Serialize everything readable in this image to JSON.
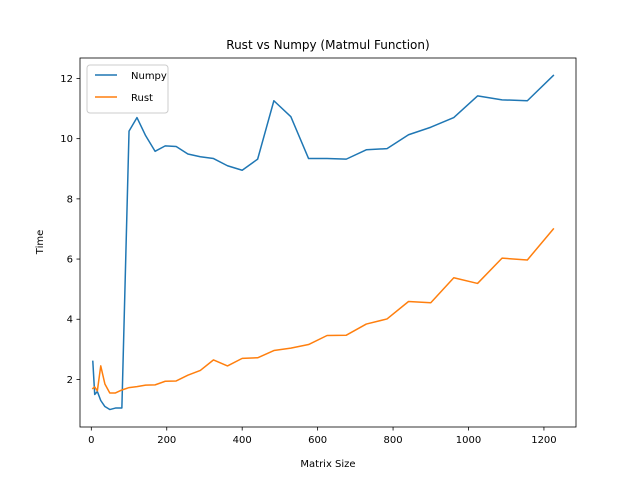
{
  "chart_data": {
    "type": "line",
    "title": "Rust vs Numpy (Matmul Function)",
    "xlabel": "Matrix Size",
    "ylabel": "Time",
    "xlim": [
      -30,
      1285
    ],
    "ylim": [
      0.42,
      12.68
    ],
    "xticks": [
      0,
      200,
      400,
      600,
      800,
      1000,
      1200
    ],
    "yticks": [
      2,
      4,
      6,
      8,
      10,
      12
    ],
    "grid": false,
    "legend_position": "upper-left",
    "series": [
      {
        "name": "Numpy",
        "color": "#1f77b4",
        "x": [
          4,
          9,
          16,
          25,
          36,
          49,
          64,
          81,
          100,
          121,
          144,
          169,
          196,
          225,
          256,
          289,
          324,
          361,
          400,
          441,
          484,
          529,
          576,
          625,
          676,
          729,
          784,
          841,
          900,
          961,
          1024,
          1089,
          1156,
          1225
        ],
        "y": [
          2.6,
          1.5,
          1.6,
          1.3,
          1.1,
          1.0,
          1.05,
          1.05,
          10.25,
          10.7,
          10.1,
          9.58,
          9.76,
          9.74,
          9.49,
          9.4,
          9.34,
          9.1,
          8.95,
          9.32,
          11.26,
          10.73,
          9.34,
          9.34,
          9.32,
          9.63,
          9.67,
          10.13,
          10.38,
          10.7,
          11.42,
          11.29,
          11.26,
          12.1
        ]
      },
      {
        "name": "Rust",
        "color": "#ff7f0e",
        "x": [
          4,
          9,
          16,
          25,
          36,
          49,
          64,
          81,
          100,
          121,
          144,
          169,
          196,
          225,
          256,
          289,
          324,
          361,
          400,
          441,
          484,
          529,
          576,
          625,
          676,
          729,
          784,
          841,
          900,
          961,
          1024,
          1089,
          1156,
          1225
        ],
        "y": [
          1.7,
          1.75,
          1.62,
          2.45,
          1.85,
          1.55,
          1.55,
          1.65,
          1.73,
          1.76,
          1.81,
          1.82,
          1.94,
          1.95,
          2.14,
          2.3,
          2.65,
          2.45,
          2.7,
          2.72,
          2.96,
          3.04,
          3.16,
          3.46,
          3.47,
          3.84,
          4.01,
          4.59,
          4.55,
          5.38,
          5.19,
          6.03,
          5.97,
          7.0
        ]
      }
    ]
  }
}
